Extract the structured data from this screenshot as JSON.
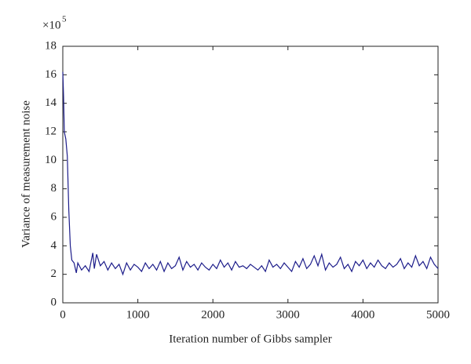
{
  "chart_data": {
    "type": "line",
    "xlabel": "Iteration number of Gibbs sampler",
    "ylabel": "Variance of measurement noise",
    "y_multiplier": {
      "base": "×10",
      "exponent": "5"
    },
    "x": [
      0,
      10,
      20,
      40,
      60,
      80,
      100,
      120,
      150,
      180,
      200,
      250,
      300,
      350,
      400,
      420,
      450,
      500,
      550,
      600,
      650,
      700,
      750,
      800,
      850,
      900,
      950,
      1000,
      1050,
      1100,
      1150,
      1200,
      1250,
      1300,
      1350,
      1400,
      1450,
      1500,
      1550,
      1600,
      1650,
      1700,
      1750,
      1800,
      1850,
      1900,
      1950,
      2000,
      2050,
      2100,
      2150,
      2200,
      2250,
      2300,
      2350,
      2400,
      2450,
      2500,
      2550,
      2600,
      2650,
      2700,
      2750,
      2800,
      2850,
      2900,
      2950,
      3000,
      3050,
      3100,
      3150,
      3200,
      3250,
      3300,
      3350,
      3400,
      3450,
      3500,
      3550,
      3600,
      3650,
      3700,
      3750,
      3800,
      3850,
      3900,
      3950,
      4000,
      4050,
      4100,
      4150,
      4200,
      4250,
      4300,
      4350,
      4400,
      4450,
      4500,
      4550,
      4600,
      4650,
      4700,
      4750,
      4800,
      4850,
      4900,
      4950,
      5000
    ],
    "series": [
      {
        "name": "Variance",
        "color": "#1c1c8a",
        "values": [
          16.2,
          14.5,
          12,
          11.5,
          10.3,
          6.5,
          4,
          3,
          2.8,
          2.1,
          2.8,
          2.3,
          2.6,
          2.2,
          3.5,
          2.4,
          3.4,
          2.6,
          2.9,
          2.3,
          2.8,
          2.4,
          2.7,
          2.0,
          2.8,
          2.3,
          2.7,
          2.5,
          2.2,
          2.8,
          2.4,
          2.7,
          2.3,
          2.9,
          2.2,
          2.8,
          2.4,
          2.6,
          3.2,
          2.3,
          2.9,
          2.5,
          2.7,
          2.3,
          2.8,
          2.5,
          2.3,
          2.7,
          2.4,
          3.0,
          2.5,
          2.8,
          2.3,
          2.9,
          2.5,
          2.6,
          2.4,
          2.7,
          2.5,
          2.3,
          2.6,
          2.2,
          3.0,
          2.5,
          2.7,
          2.4,
          2.8,
          2.5,
          2.2,
          2.9,
          2.5,
          3.1,
          2.4,
          2.7,
          3.3,
          2.6,
          3.4,
          2.3,
          2.8,
          2.5,
          2.7,
          3.2,
          2.4,
          2.7,
          2.2,
          2.9,
          2.6,
          3.0,
          2.4,
          2.8,
          2.5,
          3.0,
          2.6,
          2.4,
          2.8,
          2.5,
          2.7,
          3.1,
          2.4,
          2.8,
          2.5,
          3.3,
          2.6,
          2.9,
          2.4,
          3.2,
          2.7,
          2.4
        ]
      }
    ],
    "xlim": [
      0,
      5000
    ],
    "xticks": [
      0,
      1000,
      2000,
      3000,
      4000,
      5000
    ],
    "ylim": [
      0,
      18
    ],
    "yticks": [
      0,
      2,
      4,
      6,
      8,
      10,
      12,
      14,
      16,
      18
    ]
  }
}
